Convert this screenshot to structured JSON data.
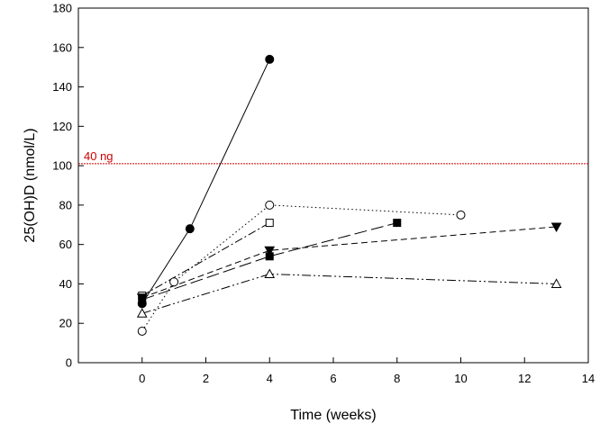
{
  "chart_data": {
    "type": "line",
    "title": "",
    "xlabel": "Time (weeks)",
    "ylabel": "25(OH)D (nmol/L)",
    "xlim": [
      -2,
      14
    ],
    "ylim": [
      0,
      180
    ],
    "xticks": [
      0,
      2,
      4,
      6,
      8,
      10,
      12,
      14
    ],
    "yticks": [
      0,
      20,
      40,
      60,
      80,
      100,
      120,
      140,
      160,
      180
    ],
    "grid": false,
    "reference_line": {
      "y": 101,
      "label": "40 ng",
      "color": "#cc0000"
    },
    "series": [
      {
        "name": "filled circle (solid)",
        "marker": "circle-filled",
        "dash": "solid",
        "x": [
          0,
          1.5,
          4
        ],
        "y": [
          30,
          68,
          154
        ]
      },
      {
        "name": "open circle (dotted)",
        "marker": "circle-open",
        "dash": "dotted",
        "x": [
          0,
          1,
          4,
          10
        ],
        "y": [
          16,
          41,
          80,
          75
        ]
      },
      {
        "name": "open square (dash-dot)",
        "marker": "square-open",
        "dash": "dashdot",
        "x": [
          0,
          4
        ],
        "y": [
          34,
          71
        ]
      },
      {
        "name": "filled square (long dash)",
        "marker": "square-filled",
        "dash": "longdash",
        "x": [
          0,
          4,
          8
        ],
        "y": [
          32,
          54,
          71
        ]
      },
      {
        "name": "filled triangle down (dashed)",
        "marker": "triangle-down-filled",
        "dash": "dashed",
        "x": [
          0,
          4,
          13
        ],
        "y": [
          33,
          57,
          69
        ]
      },
      {
        "name": "open triangle up (dash-dot-dot)",
        "marker": "triangle-up-open",
        "dash": "dashdotdot",
        "x": [
          0,
          4,
          13
        ],
        "y": [
          25,
          45,
          40
        ]
      }
    ]
  }
}
